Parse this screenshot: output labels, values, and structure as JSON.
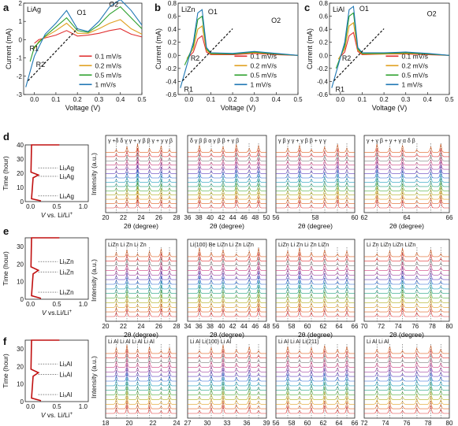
{
  "panel_labels": [
    "a",
    "b",
    "c",
    "d",
    "e",
    "f"
  ],
  "cv": [
    {
      "panel": "a",
      "material": "LiAg",
      "xlabel": "Voltage (V)",
      "ylabel": "Current (mA)",
      "xlim": [
        -0.05,
        0.5
      ],
      "ylim": [
        -3,
        2
      ],
      "xticks": [
        "0.0",
        "0.1",
        "0.2",
        "0.3",
        "0.4",
        "0.5"
      ],
      "yticks": [
        "-3",
        "-2",
        "-1",
        "0",
        "1",
        "2"
      ],
      "peaks": [
        "R1",
        "R2",
        "O1",
        "O2"
      ],
      "legend": [
        "0.1 mV/s",
        "0.2 mV/s",
        "0.5 mV/s",
        "1  mV/s"
      ]
    },
    {
      "panel": "b",
      "material": "LiZn",
      "xlabel": "Voltage (V)",
      "ylabel": "Current (mA)",
      "xlim": [
        -0.05,
        0.5
      ],
      "ylim": [
        -0.6,
        0.8
      ],
      "xticks": [
        "0.0",
        "0.1",
        "0.2",
        "0.3",
        "0.4",
        "0.5"
      ],
      "yticks": [
        "-0.6",
        "-0.4",
        "-0.2",
        "0.0",
        "0.2",
        "0.4",
        "0.6",
        "0.8"
      ],
      "peaks": [
        "R1",
        "R2",
        "O1",
        "O2"
      ],
      "legend": [
        "0.1 mV/s",
        "0.2 mV/s",
        "0.5 mV/s",
        "1  mV/s"
      ]
    },
    {
      "panel": "c",
      "material": "LiAl",
      "xlabel": "Voltage (V)",
      "ylabel": "Current (mA)",
      "xlim": [
        -0.05,
        0.5
      ],
      "ylim": [
        -0.6,
        0.8
      ],
      "xticks": [
        "0.0",
        "0.1",
        "0.2",
        "0.3",
        "0.4",
        "0.5"
      ],
      "yticks": [
        "-0.6",
        "-0.4",
        "-0.2",
        "0.0",
        "0.2",
        "0.4",
        "0.6",
        "0.8"
      ],
      "peaks": [
        "R1",
        "R2",
        "O1",
        "O2"
      ],
      "legend": [
        "0.1 mV/s",
        "0.2 mV/s",
        "0.5 mV/s",
        "1  mV/s"
      ]
    }
  ],
  "time_plots": [
    {
      "panel": "d",
      "xlabel_italic": "V",
      "xlabel_rest": " vs. Li/Li",
      "xlabel_sup": "+",
      "ylabel": "Time (hour)",
      "yticks": [
        "0",
        "10",
        "20",
        "30",
        "40"
      ],
      "xticks": [
        "0.0",
        "0.5",
        "1.0"
      ],
      "annotations": [
        "Li",
        "Ag",
        "Li",
        "Ag",
        "Li",
        "Ag"
      ]
    },
    {
      "panel": "e",
      "xlabel_italic": "V",
      "xlabel_rest": " vs.Li/Li",
      "xlabel_sup": "+",
      "ylabel": "Time (hour)",
      "yticks": [
        "0",
        "10",
        "20",
        "30"
      ],
      "xticks": [
        "0.0",
        "0.5",
        "1.0"
      ],
      "annotations": [
        "Li",
        "Zn",
        "Li",
        "Zn",
        "Li",
        "Zn"
      ]
    },
    {
      "panel": "f",
      "xlabel_italic": "V",
      "xlabel_rest": " vs. Li/Li",
      "xlabel_sup": "+",
      "ylabel": "Time (hour)",
      "yticks": [
        "0",
        "10",
        "20",
        "30"
      ],
      "xticks": [
        "0.0",
        "0.5",
        "1.0"
      ],
      "annotations": [
        "Li",
        "Al",
        "Li",
        "Al",
        "Li",
        "Al"
      ]
    }
  ],
  "xrd_rows": [
    {
      "row": "d",
      "ylabel": "Intensity (a.u.)",
      "xlabel": "2θ (degree)",
      "windows": [
        {
          "xticks": [
            "20",
            "22",
            "24",
            "26",
            "28"
          ],
          "labels": [
            "γ",
            "+δ",
            "δ",
            "γ",
            "γ",
            "+",
            "γ",
            "β",
            "β",
            "γ",
            "+",
            "γ",
            "γ",
            "β"
          ]
        },
        {
          "xticks": [
            "36",
            "38",
            "40",
            "42",
            "44",
            "46",
            "48",
            "50"
          ],
          "labels": [
            "δ",
            "γ",
            "β",
            "β",
            "α",
            "γ",
            "β",
            "β",
            "+",
            "γ",
            "β"
          ]
        },
        {
          "xticks": [
            "56",
            "58",
            "60"
          ],
          "labels": [
            "γ",
            "β",
            "γ",
            "γ",
            "+",
            "γ",
            "β",
            "β",
            "+",
            "γ",
            "γ"
          ]
        },
        {
          "xticks": [
            "62",
            "64",
            "66"
          ],
          "labels": [
            "γ",
            "+",
            "γ",
            "β",
            "+",
            "γ",
            "+",
            "γ",
            "α",
            "δ",
            "β"
          ]
        }
      ]
    },
    {
      "row": "e",
      "ylabel": "Intensity (a.u.)",
      "xlabel": "2θ (degree)",
      "windows": [
        {
          "xticks": [
            "20",
            "22",
            "24",
            "26",
            "28"
          ],
          "labels": [
            "LiZn",
            "Li",
            "Zn",
            "Li",
            "Zn"
          ]
        },
        {
          "xticks": [
            "34",
            "36",
            "38",
            "40",
            "42",
            "44",
            "46",
            "48"
          ],
          "labels": [
            "Li(100)",
            "Be",
            "LiZn",
            "Li",
            "Zn",
            "LiZn"
          ]
        },
        {
          "xticks": [
            "56",
            "58",
            "60",
            "62",
            "64",
            "66"
          ],
          "labels": [
            "LiZn",
            "Li",
            "Zn",
            "Li",
            "Zn",
            "LiZn"
          ]
        },
        {
          "xticks": [
            "70",
            "72",
            "74",
            "76",
            "78",
            "80"
          ],
          "labels": [
            "Li",
            "Zn",
            "LiZn",
            "LiZn",
            "LiZn"
          ]
        }
      ]
    },
    {
      "row": "f",
      "ylabel": "Intensity (a.u.)",
      "xlabel": "2θ (degree)",
      "windows": [
        {
          "xticks": [
            "18",
            "20",
            "22",
            "24"
          ],
          "labels": [
            "Li",
            "Al",
            "Li",
            "Al",
            "Li",
            "Al",
            "Li",
            "Al"
          ]
        },
        {
          "xticks": [
            "27",
            "30",
            "33",
            "36",
            "39"
          ],
          "labels": [
            "Li",
            "Al",
            "Li(100)",
            "Li",
            "Al"
          ]
        },
        {
          "xticks": [
            "56",
            "58",
            "60",
            "62",
            "64",
            "66"
          ],
          "labels": [
            "Li",
            "Al",
            "Li",
            "Al",
            "Li(211)"
          ]
        },
        {
          "xticks": [
            "72",
            "74",
            "76",
            "78",
            "80"
          ],
          "labels": [
            "Li",
            "Al",
            "Li",
            "Al"
          ]
        }
      ]
    }
  ],
  "chart_data": [
    {
      "type": "line",
      "panel": "a",
      "title": "LiAg",
      "xlabel": "Voltage (V)",
      "ylabel": "Current (mA)",
      "xlim": [
        -0.05,
        0.5
      ],
      "ylim": [
        -3,
        2
      ],
      "series": [
        {
          "name": "0.1 mV/s",
          "color": "#e03030",
          "x": [
            0.0,
            0.02,
            0.05,
            0.1,
            0.15,
            0.2,
            0.25,
            0.3,
            0.35,
            0.4,
            0.45,
            0.5
          ],
          "y": [
            -0.2,
            0.0,
            0.1,
            0.25,
            0.5,
            0.2,
            0.25,
            0.35,
            0.5,
            0.6,
            0.3,
            0.15
          ]
        },
        {
          "name": "0.2 mV/s",
          "color": "#e0a020",
          "x": [
            0.0,
            0.02,
            0.05,
            0.1,
            0.15,
            0.2,
            0.25,
            0.3,
            0.35,
            0.4,
            0.45,
            0.5
          ],
          "y": [
            -0.5,
            -0.1,
            0.15,
            0.5,
            0.9,
            0.35,
            0.35,
            0.6,
            0.9,
            1.1,
            0.6,
            0.3
          ]
        },
        {
          "name": "0.5 mV/s",
          "color": "#2ca02c",
          "x": [
            -0.02,
            0.0,
            0.05,
            0.1,
            0.15,
            0.2,
            0.25,
            0.3,
            0.35,
            0.4,
            0.45,
            0.5
          ],
          "y": [
            -1.2,
            -0.4,
            0.2,
            0.7,
            1.2,
            0.5,
            0.4,
            0.8,
            1.4,
            1.8,
            1.2,
            0.6
          ]
        },
        {
          "name": "1  mV/s",
          "color": "#1f77b4",
          "x": [
            -0.04,
            0.0,
            0.05,
            0.1,
            0.15,
            0.2,
            0.25,
            0.3,
            0.35,
            0.4,
            0.45,
            0.5
          ],
          "y": [
            -2.6,
            -0.9,
            0.3,
            0.9,
            1.6,
            0.6,
            0.45,
            1.0,
            1.8,
            2.2,
            1.6,
            0.8
          ]
        }
      ]
    },
    {
      "type": "line",
      "panel": "b",
      "title": "LiZn",
      "xlabel": "Voltage (V)",
      "ylabel": "Current (mA)",
      "xlim": [
        -0.05,
        0.5
      ],
      "ylim": [
        -0.6,
        0.8
      ],
      "series": [
        {
          "name": "0.1 mV/s",
          "color": "#e03030",
          "x": [
            0.0,
            0.02,
            0.04,
            0.06,
            0.08,
            0.1,
            0.2,
            0.3,
            0.4,
            0.5
          ],
          "y": [
            -0.02,
            0.05,
            0.25,
            0.3,
            0.05,
            0.01,
            0.01,
            0.03,
            0.01,
            0.0
          ]
        },
        {
          "name": "0.2 mV/s",
          "color": "#e0a020",
          "x": [
            -0.01,
            0.02,
            0.04,
            0.06,
            0.08,
            0.1,
            0.2,
            0.3,
            0.4,
            0.5
          ],
          "y": [
            -0.05,
            0.1,
            0.4,
            0.45,
            0.08,
            0.02,
            0.02,
            0.04,
            0.02,
            0.0
          ]
        },
        {
          "name": "0.5 mV/s",
          "color": "#2ca02c",
          "x": [
            -0.02,
            0.02,
            0.04,
            0.06,
            0.08,
            0.1,
            0.2,
            0.3,
            0.4,
            0.5
          ],
          "y": [
            -0.15,
            0.15,
            0.55,
            0.6,
            0.1,
            0.03,
            0.02,
            0.05,
            0.02,
            0.0
          ]
        },
        {
          "name": "1  mV/s",
          "color": "#1f77b4",
          "x": [
            -0.04,
            0.02,
            0.04,
            0.06,
            0.08,
            0.1,
            0.2,
            0.3,
            0.4,
            0.5
          ],
          "y": [
            -0.5,
            0.2,
            0.65,
            0.7,
            0.12,
            0.04,
            0.03,
            0.06,
            0.03,
            0.0
          ]
        }
      ]
    },
    {
      "type": "line",
      "panel": "c",
      "title": "LiAl",
      "xlabel": "Voltage (V)",
      "ylabel": "Current (mA)",
      "xlim": [
        -0.05,
        0.5
      ],
      "ylim": [
        -0.6,
        0.8
      ],
      "series": [
        {
          "name": "0.1 mV/s",
          "color": "#e03030",
          "x": [
            0.0,
            0.02,
            0.04,
            0.06,
            0.08,
            0.1,
            0.2,
            0.3,
            0.4,
            0.5
          ],
          "y": [
            -0.02,
            0.05,
            0.3,
            0.35,
            0.06,
            0.01,
            0.02,
            0.02,
            0.01,
            0.0
          ]
        },
        {
          "name": "0.2 mV/s",
          "color": "#e0a020",
          "x": [
            -0.01,
            0.02,
            0.04,
            0.06,
            0.08,
            0.1,
            0.2,
            0.3,
            0.4,
            0.5
          ],
          "y": [
            -0.06,
            0.1,
            0.45,
            0.5,
            0.08,
            0.02,
            0.02,
            0.03,
            0.02,
            0.0
          ]
        },
        {
          "name": "0.5 mV/s",
          "color": "#2ca02c",
          "x": [
            -0.02,
            0.02,
            0.04,
            0.06,
            0.08,
            0.1,
            0.2,
            0.3,
            0.4,
            0.5
          ],
          "y": [
            -0.2,
            0.15,
            0.6,
            0.65,
            0.1,
            0.03,
            0.03,
            0.04,
            0.02,
            0.0
          ]
        },
        {
          "name": "1  mV/s",
          "color": "#1f77b4",
          "x": [
            -0.04,
            0.02,
            0.04,
            0.06,
            0.08,
            0.1,
            0.2,
            0.3,
            0.4,
            0.5
          ],
          "y": [
            -0.5,
            0.2,
            0.7,
            0.75,
            0.12,
            0.04,
            0.04,
            0.05,
            0.03,
            0.0
          ]
        }
      ]
    }
  ]
}
